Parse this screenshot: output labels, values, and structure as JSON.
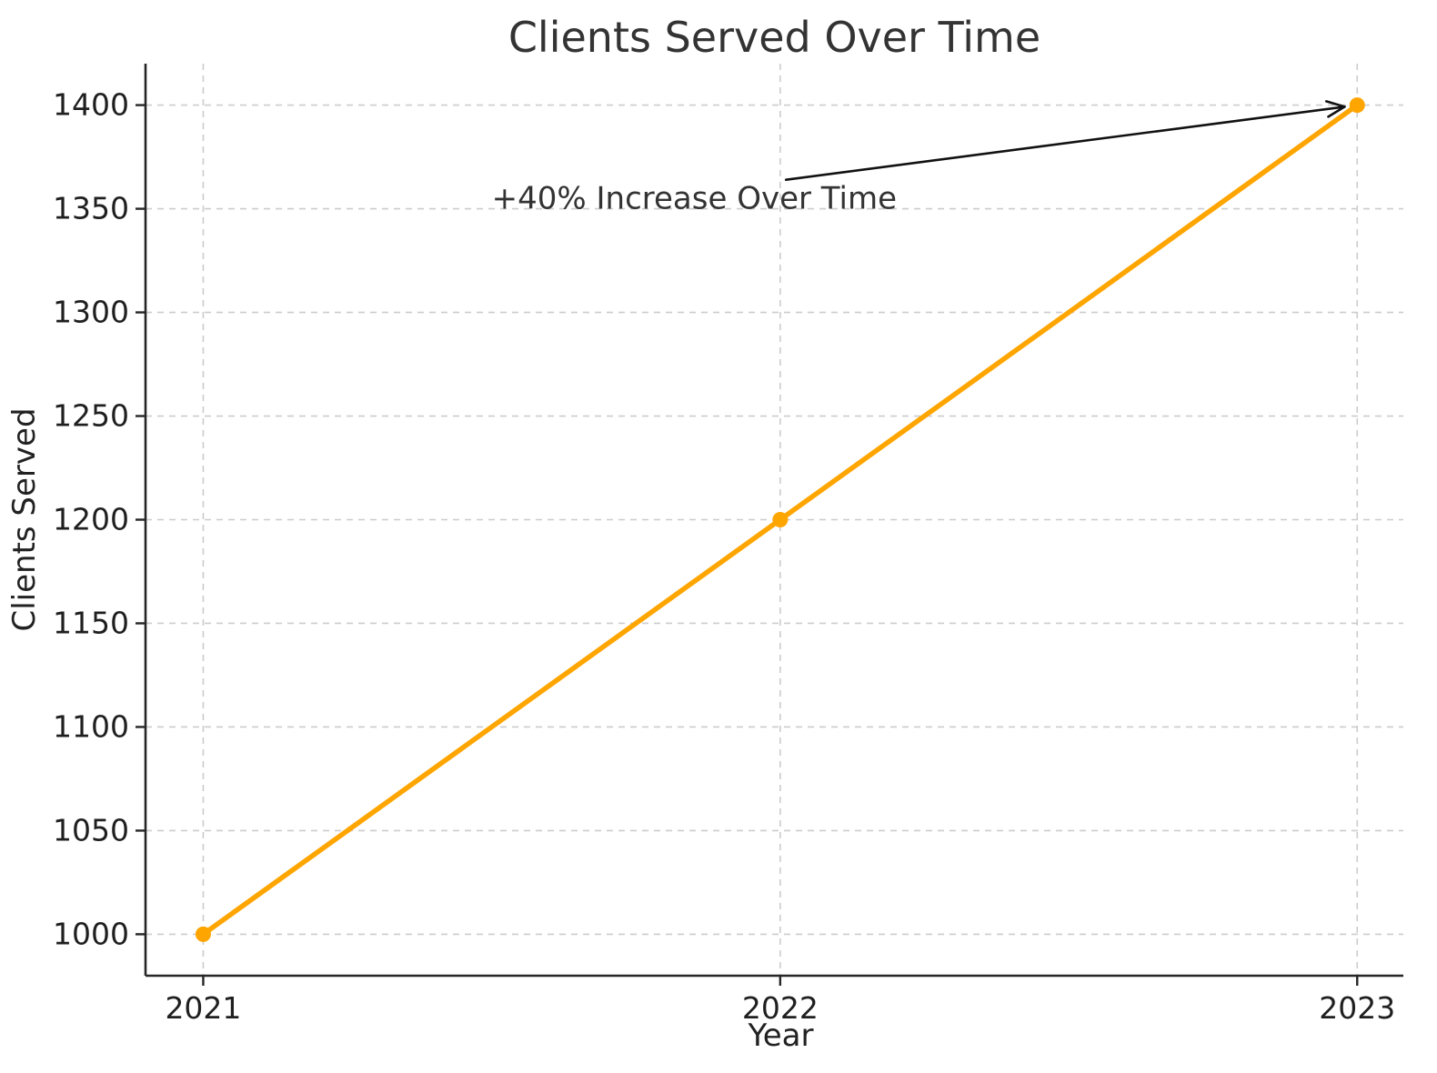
{
  "chart_data": {
    "type": "line",
    "title": "Clients Served Over Time",
    "xlabel": "Year",
    "ylabel": "Clients Served",
    "x": [
      2021,
      2022,
      2023
    ],
    "series": [
      {
        "name": "Clients Served",
        "values": [
          1000,
          1200,
          1400
        ],
        "color": "#FFA500"
      }
    ],
    "xticks": [
      2021,
      2022,
      2023
    ],
    "yticks": [
      1000,
      1050,
      1100,
      1150,
      1200,
      1250,
      1300,
      1350,
      1400
    ],
    "xlim": [
      2020.9,
      2023.08
    ],
    "ylim": [
      980,
      1420
    ],
    "grid": true,
    "legend": false,
    "annotation": {
      "text": "+40% Increase Over Time",
      "text_pos": {
        "x": 2021.5,
        "y": 1350
      },
      "arrow_start": {
        "x": 2022.01,
        "y": 1364
      },
      "target": {
        "x": 2023,
        "y": 1400
      },
      "arrow_color": "#111111"
    },
    "colors": {
      "line": "#FFA500",
      "grid": "#cccccc",
      "spine": "#262626",
      "title_text": "#333333",
      "tick_text": "#1f1f1f"
    }
  }
}
